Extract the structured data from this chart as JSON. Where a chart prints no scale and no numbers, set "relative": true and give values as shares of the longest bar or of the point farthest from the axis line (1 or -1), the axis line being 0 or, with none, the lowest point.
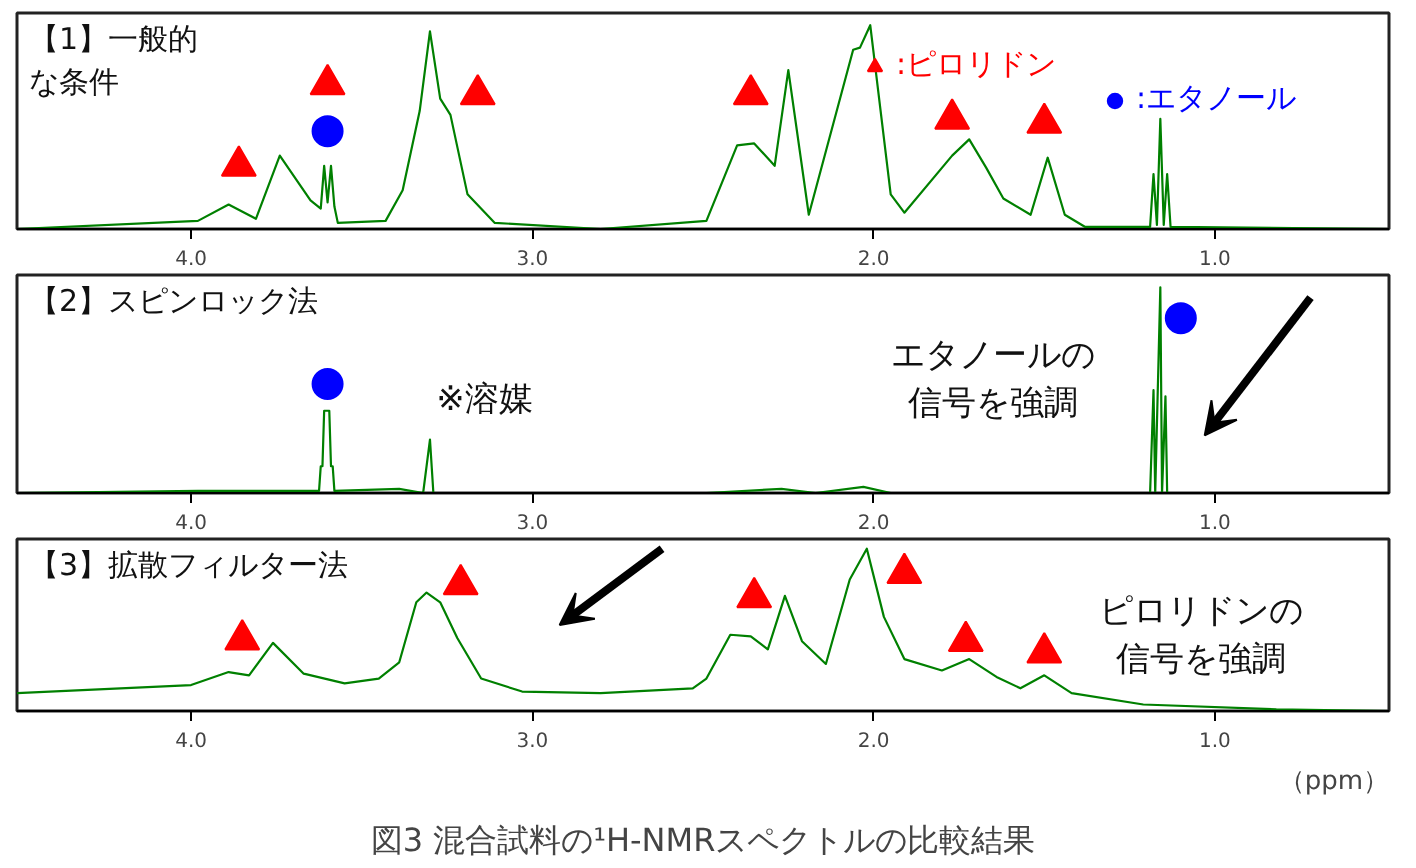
{
  "chart_data": [
    {
      "type": "line",
      "title": "【1】一般的な条件",
      "relative": true,
      "xlim": [
        4.51,
        0.49
      ],
      "xticks": [
        {
          "value": 4,
          "label": "4.0"
        },
        {
          "value": 3,
          "label": "3.0"
        },
        {
          "value": 2,
          "label": "2.0"
        },
        {
          "value": 1,
          "label": "1.0"
        }
      ],
      "legend": "top right",
      "series": [
        {
          "color": "#008000",
          "x": [
            4.51,
            3.98,
            3.89,
            3.81,
            3.74,
            3.65,
            3.62,
            3.61,
            3.6,
            3.59,
            3.58,
            3.57,
            3.43,
            3.38,
            3.33,
            3.3,
            3.27,
            3.24,
            3.19,
            3.11,
            2.8,
            2.49,
            2.4,
            2.35,
            2.29,
            2.25,
            2.19,
            2.06,
            2.04,
            2.01,
            1.95,
            1.91,
            1.77,
            1.72,
            1.67,
            1.62,
            1.54,
            1.49,
            1.44,
            1.38,
            1.19,
            1.18,
            1.17,
            1.16,
            1.15,
            1.14,
            1.13,
            0.49
          ],
          "values": [
            0,
            0.04,
            0.12,
            0.05,
            0.36,
            0.14,
            0.1,
            0.31,
            0.13,
            0.31,
            0.11,
            0.03,
            0.04,
            0.19,
            0.58,
            0.97,
            0.64,
            0.56,
            0.17,
            0.03,
            0,
            0.04,
            0.41,
            0.42,
            0.31,
            0.78,
            0.07,
            0.88,
            0.89,
            1.0,
            0.17,
            0.08,
            0.36,
            0.44,
            0.3,
            0.15,
            0.07,
            0.35,
            0.07,
            0.01,
            0.01,
            0.27,
            0.02,
            0.54,
            0.02,
            0.27,
            0.01,
            0
          ]
        },
        {
          "type": "scatter",
          "name": ":ピロリドン",
          "marker": "triangle",
          "color": "#ff0000",
          "x": [
            3.86,
            3.6,
            3.16,
            2.36,
            1.77,
            1.5
          ],
          "values": [
            0.31,
            0.71,
            0.66,
            0.66,
            0.54,
            0.52
          ]
        },
        {
          "type": "scatter",
          "name": ":エタノール",
          "marker": "circle",
          "color": "#0000ff",
          "x": [
            3.6
          ],
          "values": [
            0.48
          ]
        }
      ]
    },
    {
      "type": "line",
      "title": "【2】スピンロック法",
      "relative": true,
      "xlim": [
        4.51,
        0.49
      ],
      "xticks": [
        {
          "value": 4,
          "label": "4.0"
        },
        {
          "value": 3,
          "label": "3.0"
        },
        {
          "value": 2,
          "label": "2.0"
        },
        {
          "value": 1,
          "label": "1.0"
        }
      ],
      "annotations": [
        "※溶媒",
        "エタノールの信号を強調"
      ],
      "series": [
        {
          "color": "#008000",
          "x": [
            4.51,
            3.98,
            3.625,
            3.62,
            3.615,
            3.61,
            3.595,
            3.59,
            3.585,
            3.58,
            3.39,
            3.32,
            3.3,
            3.29,
            2.49,
            2.27,
            2.17,
            2.03,
            1.95,
            1.19,
            1.18,
            1.175,
            1.16,
            1.155,
            1.145,
            1.14,
            0.49
          ],
          "values": [
            0,
            0.01,
            0.01,
            0.13,
            0.13,
            0.4,
            0.4,
            0.13,
            0.13,
            0.01,
            0.02,
            0,
            0.26,
            0,
            0,
            0.02,
            0,
            0.03,
            0,
            0,
            0.5,
            0,
            1.0,
            0,
            0.47,
            0,
            0
          ]
        },
        {
          "type": "scatter",
          "marker": "circle",
          "color": "#0000ff",
          "x": [
            3.6,
            1.1
          ],
          "values": [
            0.53,
            0.85
          ]
        }
      ]
    },
    {
      "type": "line",
      "title": "【3】拡散フィルター法",
      "relative": true,
      "xlim": [
        4.51,
        0.49
      ],
      "xticks": [
        {
          "value": 4,
          "label": "4.0"
        },
        {
          "value": 3,
          "label": "3.0"
        },
        {
          "value": 2,
          "label": "2.0"
        },
        {
          "value": 1,
          "label": "1.0"
        }
      ],
      "xlabel": "（ppm）",
      "annotations": [
        "ピロリドンの信号を強調",
        "図3 混合試料の¹H-NMRスペクトルの比較結果"
      ],
      "series": [
        {
          "color": "#008000",
          "x": [
            4.51,
            4.0,
            3.89,
            3.83,
            3.76,
            3.67,
            3.55,
            3.45,
            3.39,
            3.34,
            3.31,
            3.27,
            3.22,
            3.15,
            3.03,
            2.8,
            2.53,
            2.49,
            2.42,
            2.36,
            2.31,
            2.26,
            2.21,
            2.14,
            2.07,
            2.02,
            1.97,
            1.91,
            1.8,
            1.72,
            1.64,
            1.57,
            1.5,
            1.42,
            1.21,
            0.82,
            0.49
          ],
          "values": [
            0.11,
            0.16,
            0.24,
            0.22,
            0.42,
            0.23,
            0.17,
            0.2,
            0.3,
            0.67,
            0.73,
            0.67,
            0.45,
            0.2,
            0.12,
            0.11,
            0.14,
            0.2,
            0.47,
            0.46,
            0.38,
            0.71,
            0.43,
            0.29,
            0.81,
            1.0,
            0.58,
            0.32,
            0.25,
            0.32,
            0.21,
            0.14,
            0.22,
            0.11,
            0.04,
            0.01,
            0
          ]
        },
        {
          "type": "scatter",
          "marker": "triangle",
          "color": "#ff0000",
          "x": [
            3.85,
            3.21,
            2.35,
            1.91,
            1.73,
            1.5
          ],
          "values": [
            0.44,
            0.78,
            0.7,
            0.85,
            0.43,
            0.36
          ]
        }
      ]
    }
  ]
}
